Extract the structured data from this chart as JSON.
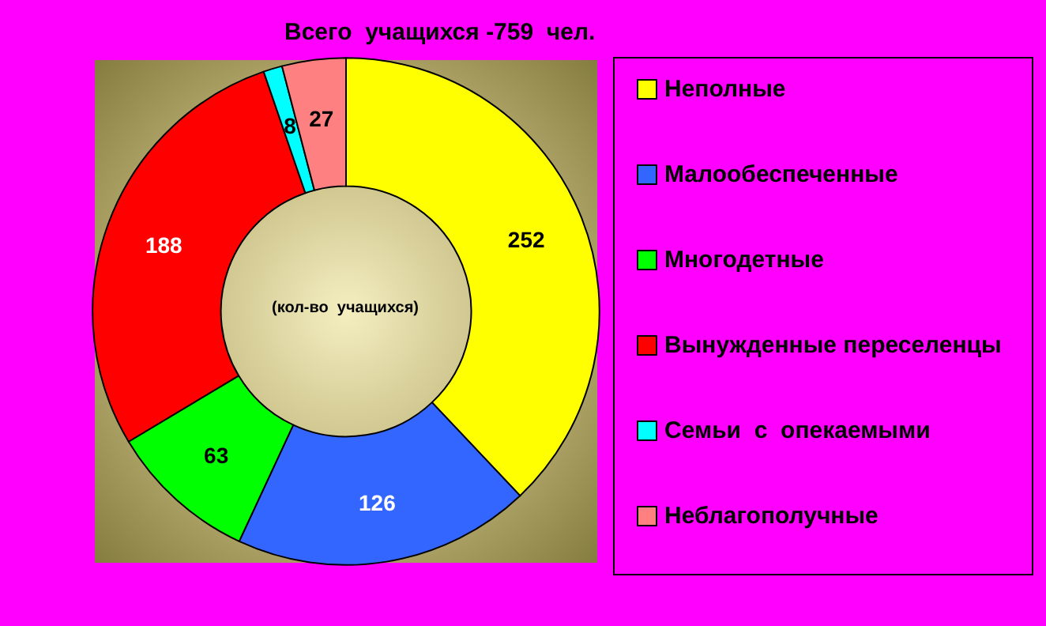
{
  "chart_data": {
    "type": "donut",
    "title": "Всего  учащихся -759  чел.",
    "categories": [
      "Неполные",
      "Малообеспеченные",
      "Многодетные",
      "Вынужденные переселенцы",
      "Семьи  с  опекаемыми",
      "Неблагополучные"
    ],
    "values": [
      252,
      126,
      63,
      188,
      8,
      27
    ],
    "colors": [
      "#ffff00",
      "#3366ff",
      "#00ff00",
      "#ff0000",
      "#00ffff",
      "#ff8080"
    ],
    "annotations": [
      "(кол-во  учащихся)"
    ],
    "data_labels": true,
    "legend": "right"
  }
}
